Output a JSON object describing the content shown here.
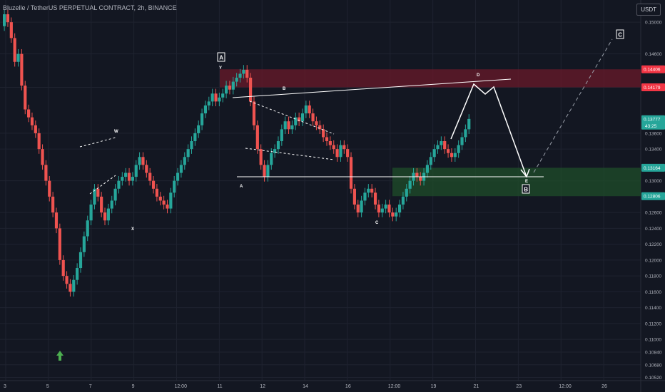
{
  "header": {
    "title": "Bluzelle / TetherUS PERPETUAL CONTRACT, 2h, BINANCE",
    "currency": "USDT"
  },
  "colors": {
    "background": "#131722",
    "grid": "#1f2330",
    "up": "#26a69a",
    "down": "#ef5350",
    "red_zone": "#6a1a2a",
    "green_zone": "#1f4d2a",
    "text": "#b2b5be",
    "arrow": "#4caf50"
  },
  "chart_data": {
    "type": "candlestick",
    "ylim": [
      0.1048,
      0.1528
    ],
    "y_ticks": [
      "0.15000",
      "0.14600",
      "0.14179",
      "0.13600",
      "0.13400",
      "0.13000",
      "0.12600",
      "0.12400",
      "0.12200",
      "0.12000",
      "0.11800",
      "0.11600",
      "0.11400",
      "0.11200",
      "0.11000",
      "0.10840",
      "0.10680",
      "0.10520"
    ],
    "x_ticks": [
      "3",
      "5",
      "7",
      "9",
      "12:00",
      "11",
      "12",
      "14",
      "16",
      "12:00",
      "19",
      "21",
      "23",
      "12:00",
      "26"
    ],
    "price_labels": [
      {
        "value": 0.14406,
        "text": "0.14406",
        "color": "#f23645"
      },
      {
        "value": 0.14179,
        "text": "0.14179",
        "color": "#f23645"
      },
      {
        "value": 0.13777,
        "text": "0.13777",
        "color": "#26a69a",
        "countdown": "43:25"
      },
      {
        "value": 0.13164,
        "text": "0.13164",
        "color": "#26a69a"
      },
      {
        "value": 0.12806,
        "text": "0.12806",
        "color": "#26a69a"
      }
    ],
    "zones": [
      {
        "name": "resistance",
        "from": 0.14179,
        "to": 0.14406
      },
      {
        "name": "support",
        "from": 0.12806,
        "to": 0.13164
      }
    ],
    "wave_labels": [
      "W",
      "X",
      "Y",
      "A",
      "B",
      "C",
      "D",
      "E"
    ],
    "boxed_labels": [
      "A",
      "B",
      "C"
    ],
    "series": {
      "open": [
        0.1495,
        0.151,
        0.15,
        0.148,
        0.145,
        0.146,
        0.142,
        0.139,
        0.138,
        0.137,
        0.136,
        0.134,
        0.132,
        0.13,
        0.128,
        0.126,
        0.124,
        0.12,
        0.118,
        0.117,
        0.116,
        0.1175,
        0.119,
        0.121,
        0.123,
        0.125,
        0.127,
        0.129,
        0.128,
        0.126,
        0.125,
        0.1265,
        0.1275,
        0.129,
        0.13,
        0.1305,
        0.131,
        0.13,
        0.1305,
        0.132,
        0.133,
        0.132,
        0.131,
        0.13,
        0.129,
        0.128,
        0.1275,
        0.127,
        0.1265,
        0.1285,
        0.13,
        0.131,
        0.132,
        0.133,
        0.134,
        0.135,
        0.136,
        0.137,
        0.1385,
        0.1395,
        0.14,
        0.141,
        0.14,
        0.1405,
        0.141,
        0.142,
        0.1415,
        0.1425,
        0.143,
        0.1435,
        0.144,
        0.143,
        0.14,
        0.137,
        0.134,
        0.132,
        0.1305,
        0.132,
        0.1335,
        0.134,
        0.135,
        0.1365,
        0.1375,
        0.1365,
        0.137,
        0.138,
        0.1375,
        0.1385,
        0.1395,
        0.1385,
        0.1375,
        0.137,
        0.1365,
        0.1355,
        0.135,
        0.1345,
        0.134,
        0.133,
        0.1345,
        0.134,
        0.133,
        0.129,
        0.127,
        0.126,
        0.1275,
        0.1285,
        0.129,
        0.1285,
        0.127,
        0.126,
        0.1265,
        0.127,
        0.126,
        0.1255,
        0.126,
        0.127,
        0.128,
        0.129,
        0.13,
        0.131,
        0.1305,
        0.13,
        0.131,
        0.132,
        0.133,
        0.134,
        0.1345,
        0.135,
        0.134,
        0.1335,
        0.133,
        0.1335,
        0.1345,
        0.1355,
        0.1365
      ],
      "close": [
        0.151,
        0.15,
        0.148,
        0.145,
        0.146,
        0.142,
        0.139,
        0.138,
        0.137,
        0.136,
        0.134,
        0.132,
        0.13,
        0.128,
        0.126,
        0.124,
        0.12,
        0.118,
        0.117,
        0.116,
        0.1175,
        0.119,
        0.121,
        0.123,
        0.125,
        0.127,
        0.129,
        0.128,
        0.126,
        0.125,
        0.1265,
        0.1275,
        0.129,
        0.13,
        0.1305,
        0.131,
        0.13,
        0.1305,
        0.132,
        0.133,
        0.132,
        0.131,
        0.13,
        0.129,
        0.128,
        0.1275,
        0.127,
        0.1265,
        0.1285,
        0.13,
        0.131,
        0.132,
        0.133,
        0.134,
        0.135,
        0.136,
        0.137,
        0.1385,
        0.1395,
        0.14,
        0.141,
        0.14,
        0.1405,
        0.141,
        0.142,
        0.1415,
        0.1425,
        0.143,
        0.1435,
        0.144,
        0.143,
        0.14,
        0.137,
        0.134,
        0.132,
        0.1305,
        0.132,
        0.1335,
        0.134,
        0.135,
        0.1365,
        0.1375,
        0.1365,
        0.137,
        0.138,
        0.1375,
        0.1385,
        0.1395,
        0.1385,
        0.1375,
        0.137,
        0.1365,
        0.1355,
        0.135,
        0.1345,
        0.134,
        0.133,
        0.1345,
        0.134,
        0.133,
        0.129,
        0.127,
        0.126,
        0.1275,
        0.1285,
        0.129,
        0.1285,
        0.127,
        0.126,
        0.1265,
        0.127,
        0.126,
        0.1255,
        0.126,
        0.127,
        0.128,
        0.129,
        0.13,
        0.131,
        0.1305,
        0.13,
        0.131,
        0.132,
        0.133,
        0.134,
        0.1345,
        0.135,
        0.134,
        0.1335,
        0.133,
        0.1335,
        0.1345,
        0.1355,
        0.1365,
        0.1378
      ]
    }
  }
}
